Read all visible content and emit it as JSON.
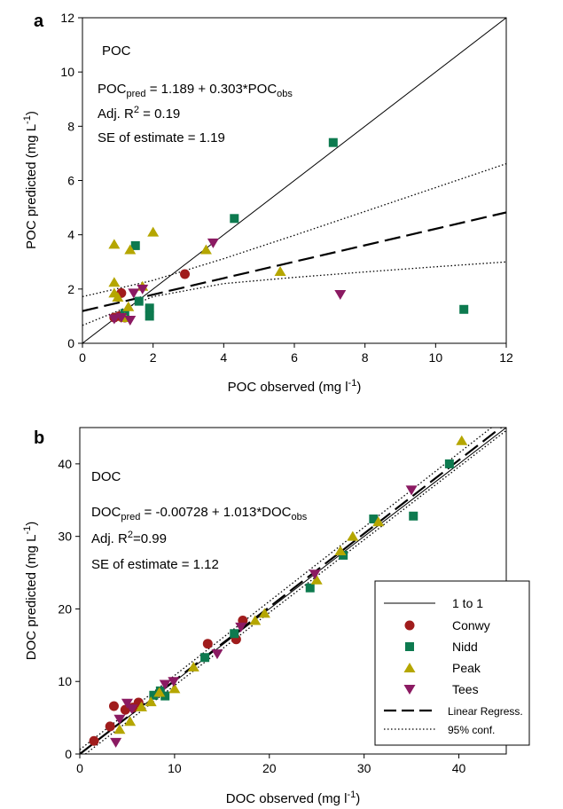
{
  "chart_data": [
    {
      "type": "scatter",
      "panel_label": "a",
      "label": "POC",
      "xlabel": "POC observed (mg l",
      "xlabel_sup": "-1",
      "xlabel_end": ")",
      "ylabel": "POC predicted (mg L",
      "ylabel_sup": "-1",
      "ylabel_end": ")",
      "xlim": [
        0,
        12
      ],
      "ylim": [
        0,
        12
      ],
      "xticks": [
        0,
        2,
        4,
        6,
        8,
        10,
        12
      ],
      "yticks": [
        0,
        2,
        4,
        6,
        8,
        10,
        12
      ],
      "equation": {
        "lhs": "POC",
        "lhs_sub": "pred",
        "rhs": " = 1.189 + 0.303*POC",
        "rhs_sub": "obs"
      },
      "r2_text": "Adj. R",
      "r2_sup": "2",
      "r2_value": " = 0.19",
      "se_text": "SE of estimate = 1.19",
      "regression": {
        "intercept": 1.189,
        "slope": 0.303
      },
      "conf_upper": [
        [
          0,
          1.72
        ],
        [
          2,
          2.32
        ],
        [
          4,
          3.12
        ],
        [
          6,
          3.98
        ],
        [
          8,
          4.86
        ],
        [
          10,
          5.74
        ],
        [
          12,
          6.62
        ]
      ],
      "conf_lower": [
        [
          0,
          0.66
        ],
        [
          2,
          1.72
        ],
        [
          4,
          2.2
        ],
        [
          6,
          2.43
        ],
        [
          8,
          2.63
        ],
        [
          10,
          2.82
        ],
        [
          12,
          3.0
        ]
      ],
      "series": [
        {
          "name": "Conwy",
          "marker": "circle",
          "color": "#a01c1c",
          "points": [
            [
              0.9,
              0.95
            ],
            [
              1.05,
              1.0
            ],
            [
              1.1,
              1.85
            ],
            [
              1.2,
              0.95
            ],
            [
              2.9,
              2.55
            ]
          ]
        },
        {
          "name": "Nidd",
          "marker": "square",
          "color": "#0d7a4f",
          "points": [
            [
              1.5,
              3.6
            ],
            [
              1.6,
              1.55
            ],
            [
              1.9,
              1.3
            ],
            [
              1.9,
              1.0
            ],
            [
              4.3,
              4.6
            ],
            [
              7.1,
              7.4
            ],
            [
              10.8,
              1.25
            ],
            [
              1.2,
              1.1
            ]
          ]
        },
        {
          "name": "Peak",
          "marker": "triangle",
          "color": "#b5a600",
          "points": [
            [
              0.9,
              3.65
            ],
            [
              0.9,
              2.25
            ],
            [
              0.9,
              1.85
            ],
            [
              1.0,
              1.7
            ],
            [
              1.35,
              3.45
            ],
            [
              1.3,
              1.35
            ],
            [
              1.7,
              2.1
            ],
            [
              2.0,
              4.1
            ],
            [
              3.5,
              3.45
            ],
            [
              5.6,
              2.65
            ],
            [
              1.2,
              0.95
            ]
          ]
        },
        {
          "name": "Tees",
          "marker": "triangle-down",
          "color": "#8b1a62",
          "points": [
            [
              0.9,
              0.9
            ],
            [
              1.1,
              0.95
            ],
            [
              1.35,
              0.85
            ],
            [
              1.45,
              1.85
            ],
            [
              1.7,
              2.0
            ],
            [
              3.7,
              3.7
            ],
            [
              7.3,
              1.8
            ]
          ]
        }
      ]
    },
    {
      "type": "scatter",
      "panel_label": "b",
      "label": "DOC",
      "xlabel": "DOC observed (mg l",
      "xlabel_sup": "-1",
      "xlabel_end": ")",
      "ylabel": "DOC predicted (mg L",
      "ylabel_sup": "-1",
      "ylabel_end": ")",
      "xlim": [
        0,
        45
      ],
      "ylim": [
        0,
        45
      ],
      "xticks": [
        0,
        10,
        20,
        30,
        40
      ],
      "yticks": [
        0,
        10,
        20,
        30,
        40
      ],
      "equation": {
        "lhs": "DOC",
        "lhs_sub": "pred",
        "rhs": " = -0.00728 + 1.013*DOC",
        "rhs_sub": "obs"
      },
      "r2_text": "Adj. R",
      "r2_sup": "2",
      "r2_value": "=0.99",
      "se_text": "SE of estimate = 1.12",
      "regression": {
        "intercept": -0.00728,
        "slope": 1.013
      },
      "conf_upper": [
        [
          0,
          0.6
        ],
        [
          45,
          46.6
        ]
      ],
      "conf_lower": [
        [
          0,
          -0.6
        ],
        [
          45,
          44.6
        ]
      ],
      "series": [
        {
          "name": "Conwy",
          "marker": "circle",
          "color": "#a01c1c",
          "points": [
            [
              1.5,
              1.8
            ],
            [
              3.2,
              3.8
            ],
            [
              3.6,
              6.6
            ],
            [
              4.8,
              6.1
            ],
            [
              5.6,
              6.4
            ],
            [
              6.2,
              7.1
            ],
            [
              13.5,
              15.2
            ],
            [
              16.5,
              15.8
            ],
            [
              17.2,
              18.4
            ]
          ]
        },
        {
          "name": "Nidd",
          "marker": "square",
          "color": "#0d7a4f",
          "points": [
            [
              7.8,
              8.1
            ],
            [
              8.5,
              8.7
            ],
            [
              9.0,
              8.0
            ],
            [
              13.2,
              13.3
            ],
            [
              16.3,
              16.6
            ],
            [
              24.3,
              22.9
            ],
            [
              27.8,
              27.4
            ],
            [
              31.0,
              32.4
            ],
            [
              35.2,
              32.8
            ],
            [
              39.0,
              40.0
            ]
          ]
        },
        {
          "name": "Peak",
          "marker": "triangle",
          "color": "#b5a600",
          "points": [
            [
              4.2,
              3.4
            ],
            [
              5.3,
              4.5
            ],
            [
              6.5,
              6.5
            ],
            [
              7.5,
              7.2
            ],
            [
              8.4,
              8.5
            ],
            [
              10.0,
              9.0
            ],
            [
              12.0,
              12.0
            ],
            [
              18.5,
              18.4
            ],
            [
              19.5,
              19.4
            ],
            [
              25.0,
              24.0
            ],
            [
              27.5,
              28.0
            ],
            [
              28.8,
              30.0
            ],
            [
              31.5,
              32.0
            ],
            [
              40.3,
              43.2
            ]
          ]
        },
        {
          "name": "Tees",
          "marker": "triangle-down",
          "color": "#8b1a62",
          "points": [
            [
              3.8,
              1.6
            ],
            [
              4.2,
              4.8
            ],
            [
              5.0,
              7.0
            ],
            [
              5.5,
              6.2
            ],
            [
              9.0,
              9.6
            ],
            [
              9.9,
              10.0
            ],
            [
              14.5,
              13.8
            ],
            [
              17.0,
              17.5
            ],
            [
              24.8,
              24.8
            ],
            [
              35.0,
              36.4
            ]
          ]
        }
      ]
    }
  ],
  "legend": {
    "items": [
      {
        "label": "1 to 1",
        "kind": "line-solid"
      },
      {
        "label": "Conwy",
        "kind": "circle",
        "color": "#a01c1c"
      },
      {
        "label": "Nidd",
        "kind": "square",
        "color": "#0d7a4f"
      },
      {
        "label": "Peak",
        "kind": "triangle",
        "color": "#b5a600"
      },
      {
        "label": "Tees",
        "kind": "triangle-down",
        "color": "#8b1a62"
      },
      {
        "label": "Linear Regress.",
        "kind": "line-dashed",
        "small": true
      },
      {
        "label": "95% conf.",
        "kind": "line-dotted",
        "small": true
      }
    ],
    "placement": "lower-right of panel b"
  }
}
